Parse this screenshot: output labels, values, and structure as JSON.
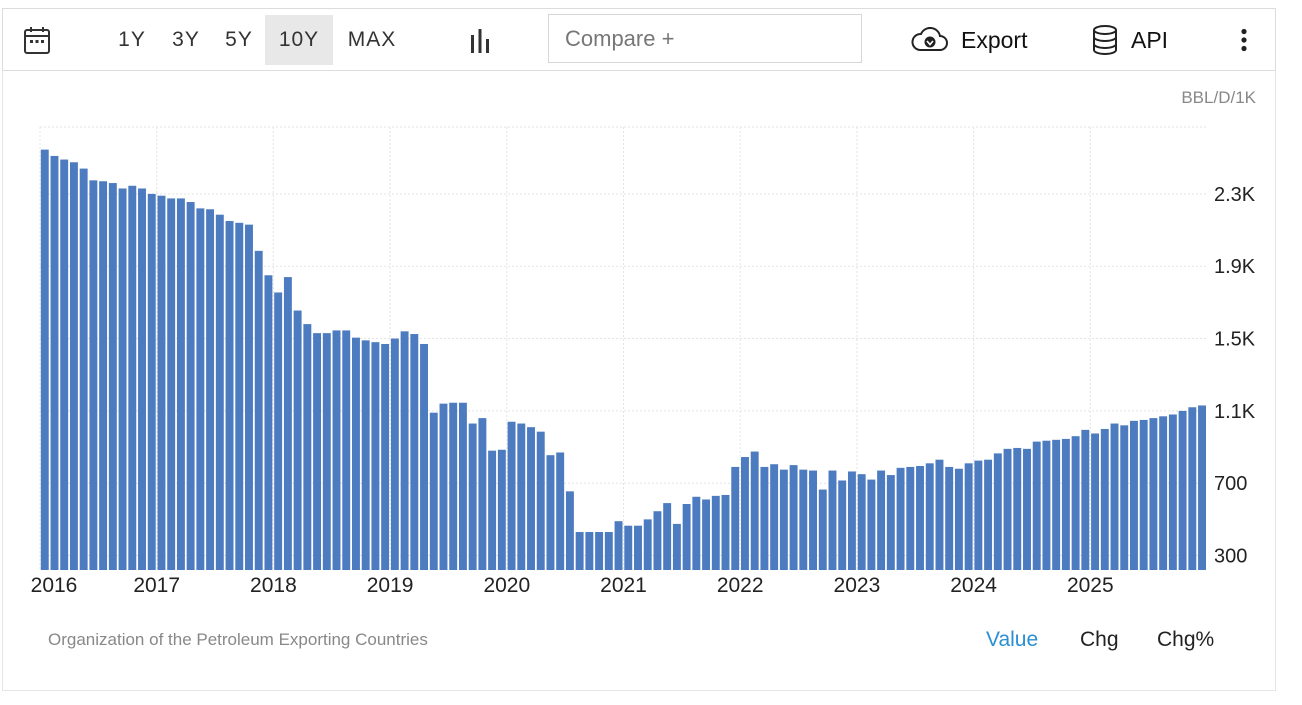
{
  "toolbar": {
    "icons": {
      "calendar": "calendar-icon",
      "chart_type": "bar-chart-icon",
      "export": "cloud-download-icon",
      "api": "database-icon",
      "more": "more-vertical-icon"
    },
    "ranges": [
      "1Y",
      "3Y",
      "5Y",
      "10Y",
      "MAX"
    ],
    "active_range": "10Y",
    "compare_placeholder": "Compare +",
    "export_label": "Export",
    "api_label": "API"
  },
  "unit_label": "BBL/D/1K",
  "source": "Organization of the Petroleum Exporting Countries",
  "modes": {
    "value": "Value",
    "chg": "Chg",
    "chg_pct": "Chg%",
    "active": "Value",
    "active_color": "#2a8fd4"
  },
  "chart_data": {
    "type": "bar",
    "color": "#4c7bc0",
    "grid": true,
    "ylim": [
      220,
      2670
    ],
    "yticks": [
      300,
      700,
      1100,
      1500,
      1900,
      2300
    ],
    "ytick_labels": [
      "300",
      "700",
      "1.1K",
      "1.5K",
      "1.9K",
      "2.3K"
    ],
    "xtick_labels": [
      "2016",
      "2017",
      "2018",
      "2019",
      "2020",
      "2021",
      "2022",
      "2023",
      "2024",
      "2025"
    ],
    "x_start": "2016-01",
    "x_end": "2025-12",
    "values": [
      2545,
      2510,
      2490,
      2475,
      2440,
      2375,
      2370,
      2360,
      2330,
      2345,
      2330,
      2300,
      2290,
      2275,
      2275,
      2255,
      2220,
      2215,
      2185,
      2150,
      2140,
      2130,
      1985,
      1850,
      1755,
      1840,
      1655,
      1580,
      1530,
      1530,
      1545,
      1545,
      1505,
      1490,
      1480,
      1470,
      1500,
      1540,
      1525,
      1470,
      1090,
      1140,
      1145,
      1145,
      1030,
      1060,
      880,
      885,
      1040,
      1030,
      1010,
      985,
      855,
      870,
      655,
      430,
      430,
      430,
      430,
      490,
      465,
      465,
      500,
      545,
      590,
      475,
      585,
      625,
      610,
      630,
      635,
      790,
      845,
      875,
      790,
      805,
      775,
      800,
      775,
      770,
      665,
      770,
      715,
      765,
      750,
      720,
      770,
      745,
      785,
      790,
      795,
      810,
      830,
      790,
      780,
      810,
      825,
      830,
      865,
      890,
      895,
      890,
      930,
      935,
      940,
      945,
      960,
      995,
      975,
      1000,
      1030,
      1020,
      1045,
      1050,
      1060,
      1070,
      1080,
      1100,
      1120,
      1130
    ]
  }
}
